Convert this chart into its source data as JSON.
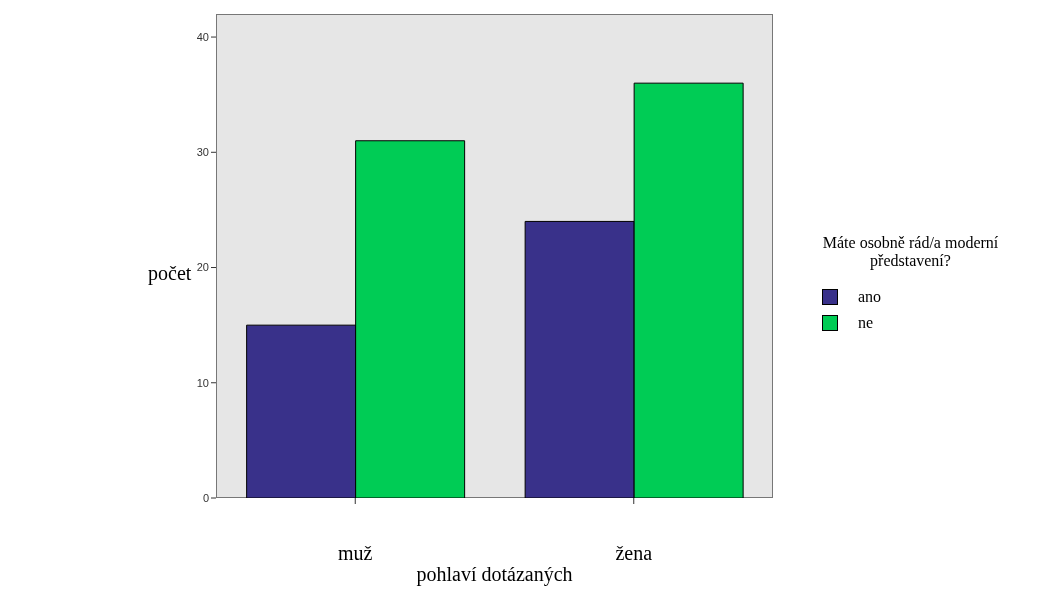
{
  "chart_data": {
    "type": "bar",
    "xlabel": "pohlaví dotázaných",
    "ylabel": "počet",
    "legend_title": "Máte osobně rád/a moderní představení?",
    "categories": [
      "muž",
      "žena"
    ],
    "series": [
      {
        "name": "ano",
        "color": "#39318a",
        "values": [
          15,
          24
        ]
      },
      {
        "name": "ne",
        "color": "#00cc55",
        "values": [
          31,
          36
        ]
      }
    ],
    "ylim": [
      0,
      42
    ],
    "yticks": [
      0,
      10,
      20,
      30,
      40
    ],
    "grid": false,
    "legend": "right"
  }
}
